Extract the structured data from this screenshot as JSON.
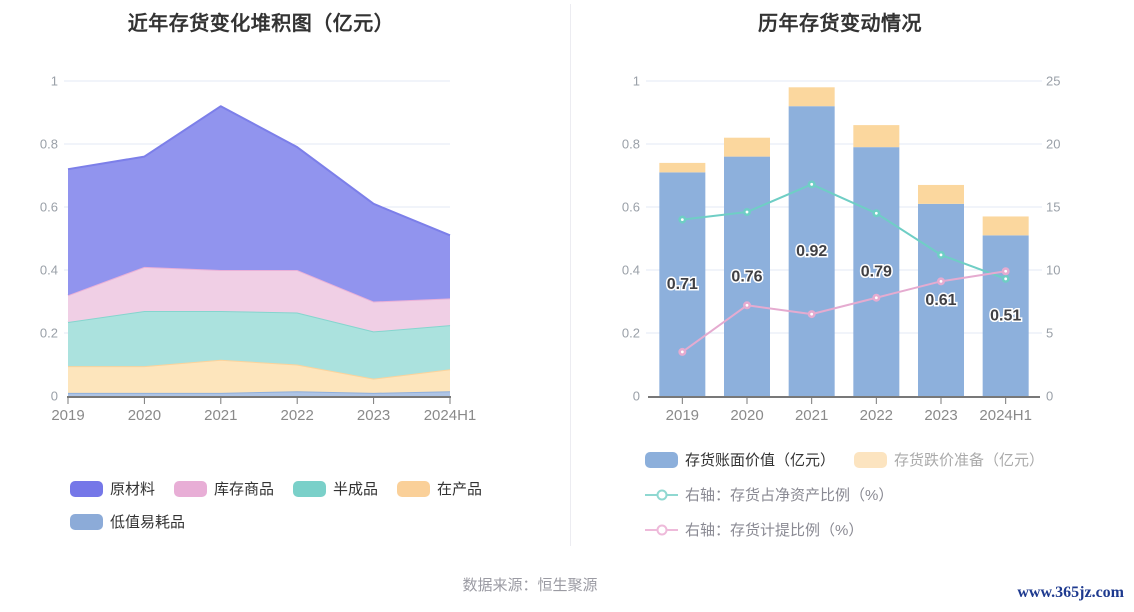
{
  "footer": {
    "source": "数据来源：恒生聚源",
    "site": "www.365jz.com"
  },
  "colors": {
    "background": "#ffffff",
    "grid": "#e3e8f4",
    "axis_line": "#787878",
    "y_tick_text": "#9aa0a8",
    "x_tick_text": "#8a8a8a",
    "title_text": "#333333",
    "bar_label_text": "#404044",
    "bar_label_halo": "#ffffff",
    "divider": "#ececf1",
    "footer_text": "#9b9ba3",
    "site_text": "#1e3a8f"
  },
  "chart_data": [
    {
      "type": "area",
      "stacked": true,
      "title": "近年存货变化堆积图（亿元）",
      "categories": [
        "2019",
        "2020",
        "2021",
        "2022",
        "2023",
        "2024H1"
      ],
      "series": [
        {
          "name": "低值易耗品",
          "line_color": "#8fafdc",
          "fill_color": "#aec4e5",
          "values": [
            0.01,
            0.01,
            0.01,
            0.015,
            0.01,
            0.015
          ]
        },
        {
          "name": "在产品",
          "line_color": "#fbd39c",
          "fill_color": "#fde5bc",
          "values": [
            0.085,
            0.085,
            0.105,
            0.085,
            0.045,
            0.07
          ]
        },
        {
          "name": "半成品",
          "line_color": "#85d5ce",
          "fill_color": "#abe2de",
          "values": [
            0.14,
            0.175,
            0.155,
            0.165,
            0.15,
            0.14
          ]
        },
        {
          "name": "库存商品",
          "line_color": "#e9b0d8",
          "fill_color": "#f0cfe5",
          "values": [
            0.085,
            0.14,
            0.13,
            0.135,
            0.095,
            0.085
          ]
        },
        {
          "name": "原材料",
          "line_color": "#7c7fe9",
          "fill_color": "#9194ee",
          "values": [
            0.4,
            0.35,
            0.52,
            0.39,
            0.31,
            0.2
          ]
        }
      ],
      "totals": [
        0.72,
        0.76,
        0.92,
        0.79,
        0.61,
        0.51
      ],
      "ylim": [
        0,
        1
      ],
      "yticks": [
        "0",
        "0.2",
        "0.4",
        "0.6",
        "0.8",
        "1"
      ],
      "ytick_values": [
        0,
        0.2,
        0.4,
        0.6,
        0.8,
        1
      ],
      "grid": true,
      "legend_position": "bottom",
      "legend": [
        {
          "label": "原材料",
          "color": "#7577e8"
        },
        {
          "label": "库存商品",
          "color": "#e8aed6"
        },
        {
          "label": "半成品",
          "color": "#7ad0c9"
        },
        {
          "label": "在产品",
          "color": "#fad099"
        },
        {
          "label": "低值易耗品",
          "color": "#8cabd8"
        }
      ]
    },
    {
      "type": "bar+line",
      "title": "历年存货变动情况",
      "categories": [
        "2019",
        "2020",
        "2021",
        "2022",
        "2023",
        "2024H1"
      ],
      "bar_series": [
        {
          "name": "存货账面价值（亿元）",
          "color": "#8db0dc",
          "axis": "left",
          "values": [
            0.71,
            0.76,
            0.92,
            0.79,
            0.61,
            0.51
          ],
          "value_labels": [
            "0.71",
            "0.76",
            "0.92",
            "0.79",
            "0.61",
            "0.51"
          ]
        },
        {
          "name": "存货跌价准备（亿元）",
          "color": "#fbd79e",
          "axis": "left",
          "stacked": true,
          "values": [
            0.03,
            0.06,
            0.06,
            0.07,
            0.06,
            0.06
          ]
        }
      ],
      "line_series": [
        {
          "name": "右轴：存货占净资产比例（%）",
          "color": "#6fcec5",
          "axis": "right",
          "values": [
            14.0,
            14.6,
            16.8,
            14.5,
            11.2,
            9.3
          ]
        },
        {
          "name": "右轴：存货计提比例（%）",
          "color": "#e5abd0",
          "axis": "right",
          "values": [
            3.5,
            7.2,
            6.5,
            7.8,
            9.1,
            9.9
          ]
        }
      ],
      "left_axis": {
        "lim": [
          0,
          1
        ],
        "ticks": [
          "0",
          "0.2",
          "0.4",
          "0.6",
          "0.8",
          "1"
        ],
        "tick_values": [
          0,
          0.2,
          0.4,
          0.6,
          0.8,
          1
        ]
      },
      "right_axis": {
        "lim": [
          0,
          25
        ],
        "ticks": [
          "0",
          "5",
          "10",
          "15",
          "20",
          "25"
        ],
        "tick_values": [
          0,
          5,
          10,
          15,
          20,
          25
        ]
      },
      "grid": true,
      "legend_position": "bottom",
      "legend_bars": [
        {
          "label": "存货账面价值（亿元）",
          "color": "#8cafdb",
          "text_color": "#333333"
        },
        {
          "label": "存货跌价准备（亿元）",
          "color": "#fce4c0",
          "text_color": "#aaaaaa"
        }
      ],
      "legend_lines": [
        {
          "label": "右轴：存货占净资产比例（%）",
          "color": "#8fd8d1",
          "text_color": "#8a8a93"
        },
        {
          "label": "右轴：存货计提比例（%）",
          "color": "#eebada",
          "text_color": "#8a8a93"
        }
      ]
    }
  ]
}
